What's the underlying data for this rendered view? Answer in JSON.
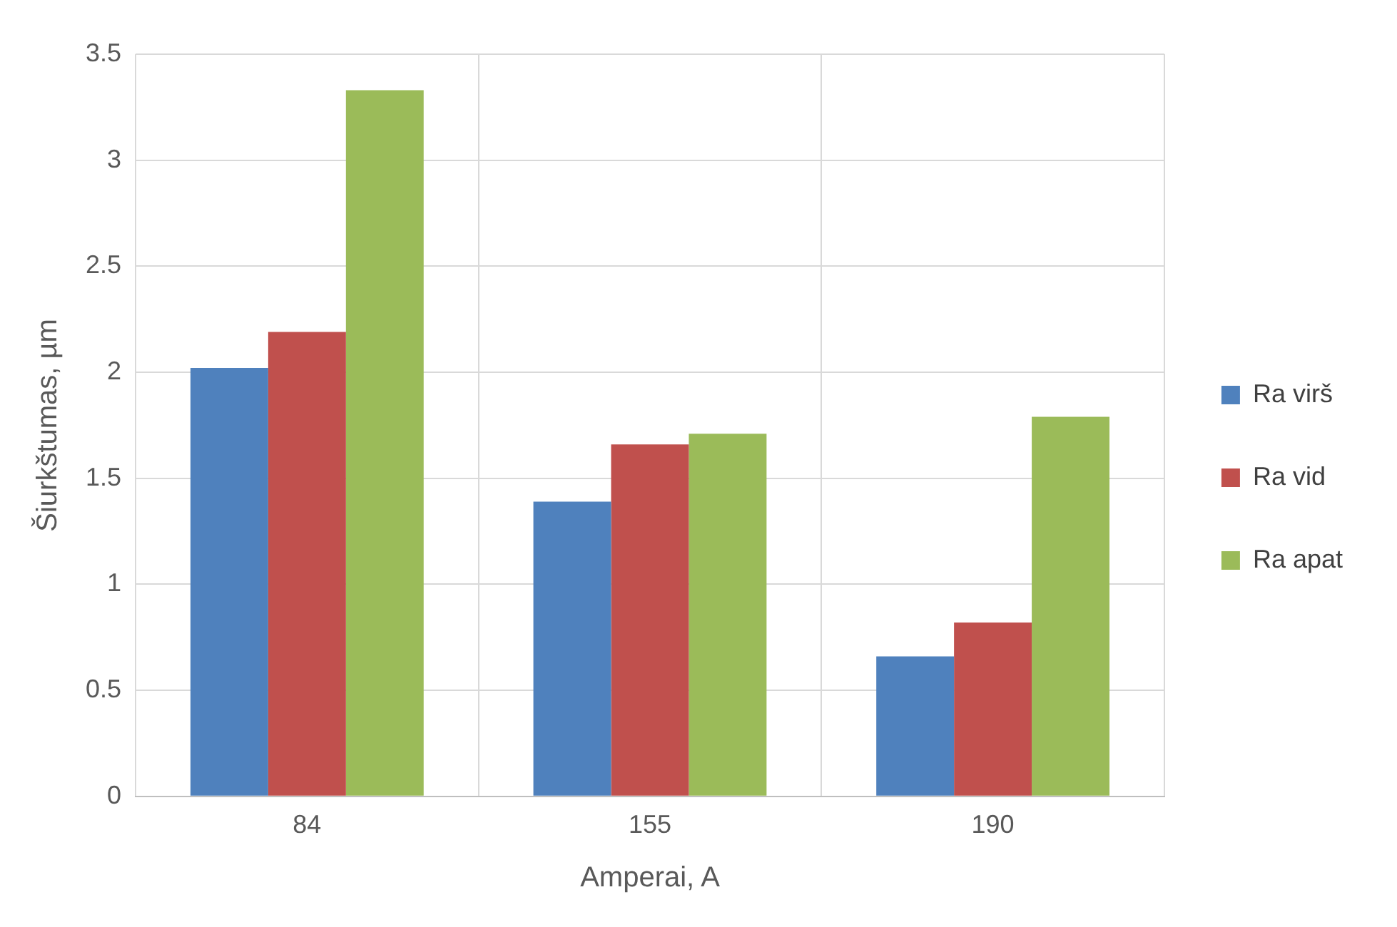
{
  "chart_data": {
    "type": "bar",
    "xlabel": "Amperai, A",
    "ylabel": "Šiurkštumas, µm",
    "categories": [
      "84",
      "155",
      "190"
    ],
    "series": [
      {
        "name": "Ra virš",
        "color": "#4f81bd",
        "values": [
          2.02,
          1.39,
          0.66
        ]
      },
      {
        "name": "Ra vid",
        "color": "#c0504d",
        "values": [
          2.19,
          1.66,
          0.82
        ]
      },
      {
        "name": "Ra apat",
        "color": "#9bbb59",
        "values": [
          3.33,
          1.71,
          1.79
        ]
      }
    ],
    "ylim": [
      0,
      3.5
    ],
    "yticks": [
      0,
      0.5,
      1,
      1.5,
      2,
      2.5,
      3,
      3.5
    ],
    "grid": true,
    "legend": "right"
  }
}
